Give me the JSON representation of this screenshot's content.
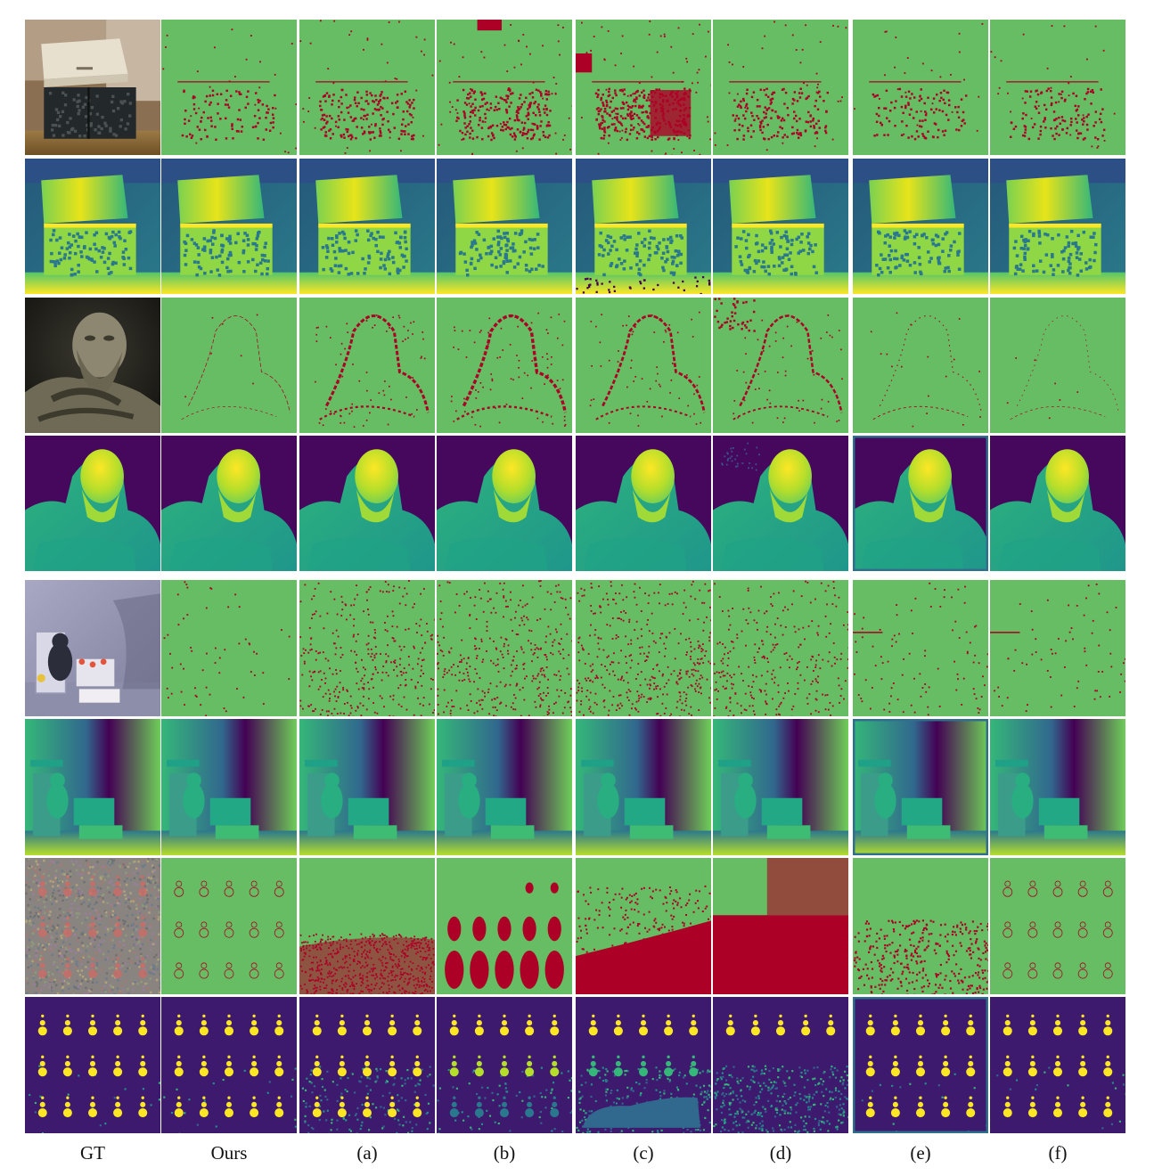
{
  "figure": {
    "columns": [
      "GT",
      "Ours",
      "(a)",
      "(b)",
      "(c)",
      "(d)",
      "(e)",
      "(f)"
    ],
    "scenes": [
      "storage-boxes",
      "bust-statue",
      "toy-room",
      "dot-pattern"
    ],
    "row_kinds": [
      "error-map",
      "disparity-map"
    ]
  },
  "colors": {
    "error_correct": "#66bd63",
    "error_wrong": "#ad0026",
    "disparity_low": "#440154",
    "disparity_mid": "#21918c",
    "disparity_high": "#fde725"
  },
  "error_density": {
    "storage-boxes": [
      0.2,
      0.35,
      0.45,
      0.6,
      0.32,
      0.22,
      0.24
    ],
    "bust-statue": [
      0.03,
      0.28,
      0.32,
      0.25,
      0.22,
      0.07,
      0.03
    ],
    "toy-room": [
      0.06,
      0.35,
      0.38,
      0.42,
      0.3,
      0.1,
      0.07
    ],
    "dot-pattern": [
      0.05,
      0.45,
      0.6,
      0.55,
      0.7,
      0.25,
      0.07
    ]
  }
}
